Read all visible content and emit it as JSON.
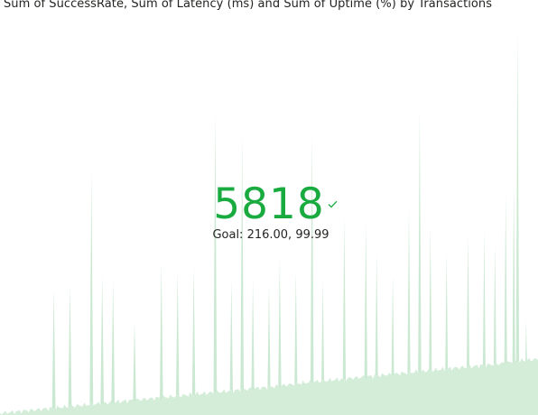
{
  "visual": {
    "title": "Sum of SuccessRate, Sum of Latency (ms) and Sum of Uptime (%) by Transactions"
  },
  "kpi": {
    "value": "5818",
    "goal": "Goal: 216.00, 99.99",
    "status_icon": "checkmark-icon",
    "status_color": "#1aab40"
  },
  "chart_data": {
    "type": "area",
    "title": "Sum of SuccessRate, Sum of Latency (ms) and Sum of Uptime (%) by Transactions",
    "xlabel": "",
    "ylabel": "",
    "grid": false,
    "legend": "none",
    "colors": {
      "area": "#d3edd9",
      "spike": "#cbe9d2"
    },
    "series": [
      {
        "baseline_values": [
          2,
          4,
          6,
          8,
          10,
          12,
          14,
          16,
          18,
          20,
          22,
          24,
          26,
          28,
          30,
          32,
          35,
          37,
          39,
          41,
          43,
          45,
          47,
          49,
          51,
          53,
          55,
          57,
          60,
          62
        ],
        "spikes": [
          {
            "at": 0.1,
            "value": 140
          },
          {
            "at": 0.13,
            "value": 145
          },
          {
            "at": 0.17,
            "value": 270
          },
          {
            "at": 0.19,
            "value": 155
          },
          {
            "at": 0.21,
            "value": 150
          },
          {
            "at": 0.25,
            "value": 105
          },
          {
            "at": 0.3,
            "value": 170
          },
          {
            "at": 0.33,
            "value": 160
          },
          {
            "at": 0.36,
            "value": 165
          },
          {
            "at": 0.4,
            "value": 335
          },
          {
            "at": 0.43,
            "value": 150
          },
          {
            "at": 0.45,
            "value": 310
          },
          {
            "at": 0.47,
            "value": 150
          },
          {
            "at": 0.5,
            "value": 145
          },
          {
            "at": 0.52,
            "value": 175
          },
          {
            "at": 0.55,
            "value": 160
          },
          {
            "at": 0.58,
            "value": 310
          },
          {
            "at": 0.6,
            "value": 150
          },
          {
            "at": 0.64,
            "value": 220
          },
          {
            "at": 0.68,
            "value": 215
          },
          {
            "at": 0.7,
            "value": 180
          },
          {
            "at": 0.73,
            "value": 155
          },
          {
            "at": 0.76,
            "value": 230
          },
          {
            "at": 0.78,
            "value": 340
          },
          {
            "at": 0.8,
            "value": 210
          },
          {
            "at": 0.83,
            "value": 180
          },
          {
            "at": 0.87,
            "value": 200
          },
          {
            "at": 0.9,
            "value": 205
          },
          {
            "at": 0.92,
            "value": 190
          },
          {
            "at": 0.94,
            "value": 245
          },
          {
            "at": 0.955,
            "value": 255
          },
          {
            "at": 0.962,
            "value": 425
          },
          {
            "at": 0.978,
            "value": 105
          }
        ]
      }
    ]
  }
}
